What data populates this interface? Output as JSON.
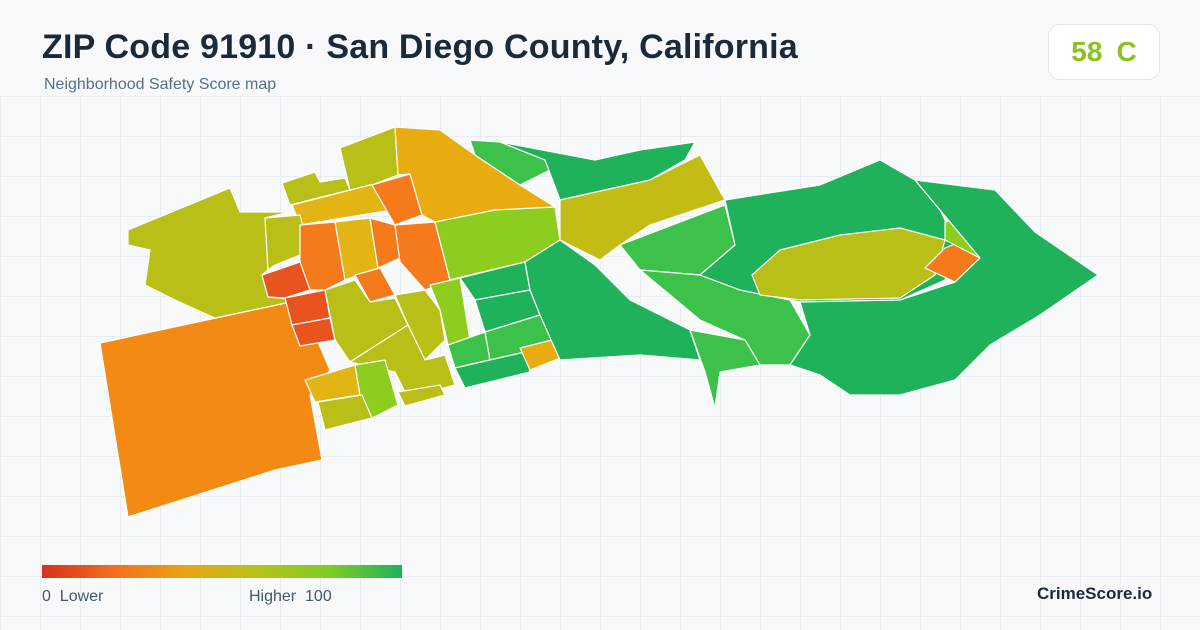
{
  "header": {
    "title": "ZIP Code 91910 · San Diego County, California",
    "subtitle": "Neighborhood Safety Score map"
  },
  "score": {
    "value": "58",
    "grade": "C",
    "color": "#8cc21f"
  },
  "legend": {
    "low_label": "0  Lower",
    "high_label": "Higher  100",
    "gradient_colors": [
      "#d7301f",
      "#f36f1f",
      "#e8a414",
      "#b5c218",
      "#7dcc24",
      "#1fb25a"
    ]
  },
  "brand": "CrimeScore.io",
  "palette": {
    "red": "#e8531f",
    "orange": "#f28a14",
    "orange_red": "#f57a1c",
    "amber": "#e8ac10",
    "olive": "#b8bf16",
    "yellow_green": "#8ccd20",
    "green": "#3cc24a",
    "dark_green": "#1fb25a"
  }
}
